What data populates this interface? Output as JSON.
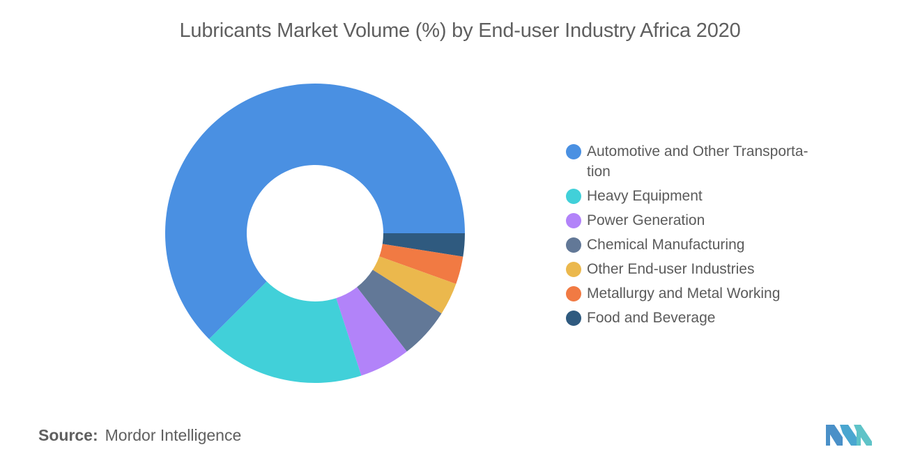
{
  "chart_data": {
    "type": "pie",
    "donut": true,
    "title": "Lubricants Market Volume (%) by End-user Industry Africa 2020",
    "legend_position": "right",
    "series": [
      {
        "name": "Automotive and Other Transporta-tion",
        "value": 62.5,
        "color": "#4a90e2"
      },
      {
        "name": "Heavy Equipment",
        "value": 17.5,
        "color": "#41d0d9"
      },
      {
        "name": "Power Generation",
        "value": 5.5,
        "color": "#b283f9"
      },
      {
        "name": "Chemical Manufacturing",
        "value": 5.5,
        "color": "#627897"
      },
      {
        "name": "Other End-user Industries",
        "value": 3.5,
        "color": "#ebb84d"
      },
      {
        "name": "Metallurgy and Metal Working",
        "value": 3.0,
        "color": "#f17a43"
      },
      {
        "name": "Food and Beverage",
        "value": 2.5,
        "color": "#2f5a7f"
      }
    ]
  },
  "source": {
    "label": "Source:",
    "value": "Mordor Intelligence"
  },
  "logo": {
    "icon": "mordor-intelligence-logo-icon",
    "color_left": "#4a90c8",
    "color_right": "#5fc3c8"
  }
}
